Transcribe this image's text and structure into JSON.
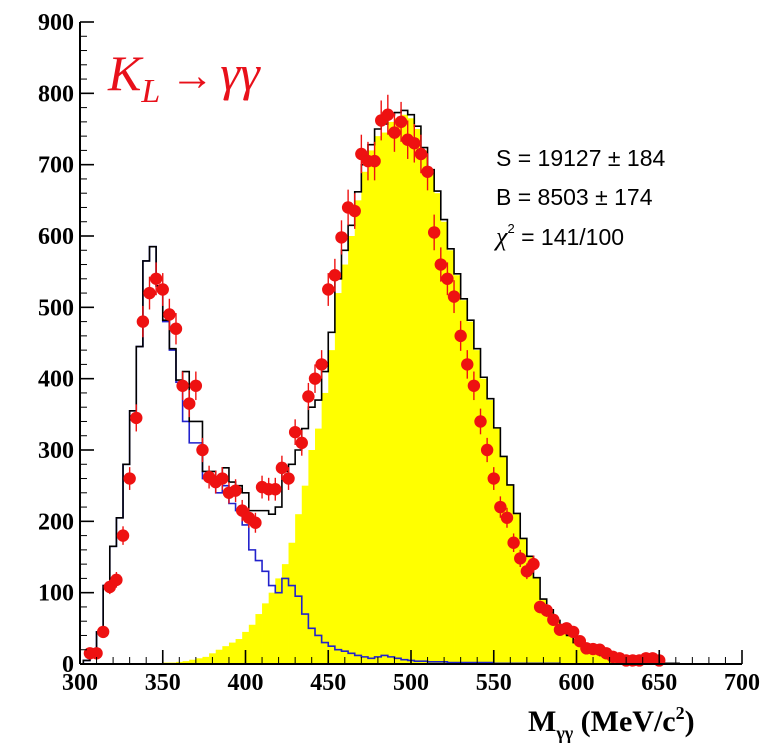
{
  "chart_data": {
    "type": "histogram",
    "title": "K_L → γγ",
    "title_parts": {
      "main": "K",
      "sub": "L",
      "arrow": "→",
      "decay": "γγ"
    },
    "xlabel": "M_γγ (MeV/c²)",
    "xlabel_parts": {
      "main": "M",
      "sub": "γγ",
      "units": " (MeV/c",
      "sup": "2",
      "close": ")"
    },
    "xlim": [
      300,
      700
    ],
    "ylim": [
      0,
      900
    ],
    "x_ticks": [
      "300",
      "350",
      "400",
      "450",
      "500",
      "550",
      "600",
      "650",
      "700"
    ],
    "y_ticks": [
      "0",
      "100",
      "200",
      "300",
      "400",
      "500",
      "600",
      "700",
      "800",
      "900"
    ],
    "grid": false,
    "bin_width": 4,
    "stats": {
      "line1": "S = 19127 ± 184",
      "line2": "B = 8503 ± 174",
      "line3_symbol": "χ",
      "line3_sup": "2",
      "line3_rest": " = 141/100"
    },
    "colors": {
      "signal_fill": "#ffff00",
      "background_line": "#2222cc",
      "total_line": "#000000",
      "data_points": "#ee1111",
      "title": "#e8101a"
    },
    "series": [
      {
        "role": "signal",
        "style": "filled-histogram",
        "x": [
          304,
          308,
          312,
          316,
          320,
          324,
          328,
          332,
          336,
          340,
          344,
          348,
          352,
          356,
          360,
          364,
          368,
          372,
          376,
          380,
          384,
          388,
          392,
          396,
          400,
          404,
          408,
          412,
          416,
          420,
          424,
          428,
          432,
          436,
          440,
          444,
          448,
          452,
          456,
          460,
          464,
          468,
          472,
          476,
          480,
          484,
          488,
          492,
          496,
          500,
          504,
          508,
          512,
          516,
          520,
          524,
          528,
          532,
          536,
          540,
          544,
          548,
          552,
          556,
          560,
          564,
          568,
          572,
          576,
          580,
          584,
          588,
          592,
          596,
          600,
          604,
          608,
          612,
          616,
          620,
          624,
          628,
          632,
          636,
          640,
          644,
          648,
          652,
          656,
          660,
          664,
          668,
          672,
          676,
          680,
          684,
          688,
          692,
          696
        ],
        "values": [
          0,
          0,
          0,
          0,
          0,
          0,
          0,
          0,
          0,
          0,
          0,
          0,
          2,
          2,
          3,
          4,
          6,
          8,
          10,
          15,
          20,
          25,
          30,
          35,
          45,
          55,
          70,
          85,
          100,
          120,
          140,
          170,
          210,
          250,
          300,
          330,
          380,
          440,
          520,
          560,
          600,
          650,
          690,
          720,
          740,
          745,
          760,
          765,
          770,
          765,
          750,
          720,
          690,
          660,
          620,
          580,
          545,
          510,
          480,
          440,
          400,
          370,
          330,
          290,
          250,
          210,
          175,
          150,
          120,
          90,
          75,
          60,
          50,
          40,
          30,
          25,
          20,
          15,
          12,
          10,
          8,
          6,
          5,
          4,
          3,
          2,
          2,
          1,
          1,
          1,
          0,
          0,
          0,
          0,
          0,
          0,
          0,
          0,
          0
        ]
      },
      {
        "role": "background",
        "style": "step-line",
        "x": [
          304,
          308,
          312,
          316,
          320,
          324,
          328,
          332,
          336,
          340,
          344,
          348,
          352,
          356,
          360,
          364,
          368,
          372,
          376,
          380,
          384,
          388,
          392,
          396,
          400,
          404,
          408,
          412,
          416,
          420,
          424,
          428,
          432,
          436,
          440,
          444,
          448,
          452,
          456,
          460,
          464,
          468,
          472,
          476,
          480,
          484,
          488,
          492,
          496,
          500,
          504,
          508,
          512,
          516,
          520,
          524,
          528,
          532,
          536,
          540,
          544,
          548,
          552,
          556,
          560,
          564,
          568,
          572,
          576,
          580,
          584,
          588,
          592,
          596,
          600,
          604,
          608,
          612,
          616,
          620,
          624,
          628,
          632,
          636,
          640,
          644,
          648,
          652,
          656,
          660,
          664,
          668,
          672,
          676,
          680,
          684,
          688,
          692,
          696
        ],
        "values": [
          5,
          15,
          45,
          110,
          165,
          205,
          280,
          355,
          445,
          565,
          585,
          530,
          480,
          440,
          395,
          340,
          310,
          310,
          260,
          255,
          240,
          250,
          225,
          215,
          195,
          160,
          145,
          130,
          110,
          100,
          120,
          110,
          95,
          70,
          50,
          40,
          30,
          25,
          20,
          18,
          15,
          12,
          10,
          8,
          10,
          12,
          10,
          8,
          6,
          5,
          4,
          4,
          3,
          3,
          3,
          2,
          2,
          2,
          2,
          2,
          2,
          2,
          1,
          1,
          1,
          1,
          1,
          1,
          1,
          1,
          1,
          1,
          0,
          0,
          0,
          0,
          0,
          0,
          0,
          0,
          0,
          0,
          0,
          0,
          0,
          0,
          0,
          0,
          0,
          0,
          0,
          0,
          0,
          0,
          0,
          0,
          0,
          0,
          0
        ]
      },
      {
        "role": "total",
        "style": "step-line",
        "x": [
          304,
          308,
          312,
          316,
          320,
          324,
          328,
          332,
          336,
          340,
          344,
          348,
          352,
          356,
          360,
          364,
          368,
          372,
          376,
          380,
          384,
          388,
          392,
          396,
          400,
          404,
          408,
          412,
          416,
          420,
          424,
          428,
          432,
          436,
          440,
          444,
          448,
          452,
          456,
          460,
          464,
          468,
          472,
          476,
          480,
          484,
          488,
          492,
          496,
          500,
          504,
          508,
          512,
          516,
          520,
          524,
          528,
          532,
          536,
          540,
          544,
          548,
          552,
          556,
          560,
          564,
          568,
          572,
          576,
          580,
          584,
          588,
          592,
          596,
          600,
          604,
          608,
          612,
          616,
          620,
          624,
          628,
          632,
          636,
          640,
          644,
          648,
          652,
          656,
          660,
          664,
          668,
          672,
          676,
          680,
          684,
          688,
          692,
          696
        ],
        "values": [
          5,
          15,
          45,
          110,
          165,
          205,
          280,
          355,
          445,
          565,
          585,
          530,
          482,
          442,
          398,
          410,
          340,
          340,
          270,
          270,
          260,
          275,
          255,
          250,
          240,
          215,
          215,
          215,
          210,
          220,
          270,
          280,
          300,
          330,
          360,
          370,
          410,
          465,
          540,
          580,
          615,
          662,
          700,
          728,
          750,
          757,
          770,
          773,
          776,
          770,
          754,
          724,
          693,
          663,
          623,
          582,
          547,
          512,
          482,
          442,
          402,
          372,
          331,
          291,
          251,
          211,
          176,
          151,
          121,
          91,
          76,
          61,
          50,
          40,
          30,
          25,
          20,
          15,
          12,
          10,
          8,
          6,
          5,
          4,
          3,
          2,
          2,
          1,
          1,
          1,
          0,
          0,
          0,
          0,
          0,
          0,
          0,
          0,
          0
        ]
      },
      {
        "role": "data",
        "style": "points-with-errors",
        "x": [
          306,
          310,
          314,
          318,
          322,
          326,
          330,
          334,
          338,
          342,
          346,
          350,
          354,
          358,
          362,
          366,
          370,
          374,
          378,
          382,
          386,
          390,
          394,
          398,
          402,
          406,
          410,
          414,
          418,
          422,
          426,
          430,
          434,
          438,
          442,
          446,
          450,
          454,
          458,
          462,
          466,
          470,
          474,
          478,
          482,
          486,
          490,
          494,
          498,
          502,
          506,
          510,
          514,
          518,
          522,
          526,
          530,
          534,
          538,
          542,
          546,
          550,
          554,
          558,
          562,
          566,
          570,
          574,
          578,
          582,
          586,
          590,
          594,
          598,
          602,
          606,
          610,
          614,
          618,
          622,
          626,
          630,
          634,
          638,
          642,
          646,
          650
        ],
        "values": [
          15,
          15,
          45,
          108,
          118,
          180,
          260,
          345,
          480,
          520,
          540,
          525,
          490,
          470,
          390,
          365,
          390,
          300,
          262,
          255,
          260,
          240,
          243,
          215,
          205,
          198,
          248,
          245,
          245,
          275,
          260,
          325,
          310,
          375,
          400,
          420,
          525,
          545,
          598,
          640,
          635,
          715,
          705,
          705,
          762,
          770,
          745,
          760,
          735,
          730,
          715,
          690,
          605,
          560,
          540,
          515,
          460,
          420,
          390,
          340,
          300,
          260,
          220,
          205,
          170,
          148,
          130,
          140,
          80,
          75,
          62,
          48,
          50,
          45,
          32,
          22,
          21,
          20,
          15,
          10,
          8,
          5,
          5,
          5,
          8,
          8,
          5
        ],
        "errors": [
          4,
          4,
          7,
          10,
          11,
          13,
          16,
          19,
          22,
          23,
          23,
          23,
          22,
          22,
          20,
          19,
          20,
          17,
          16,
          16,
          16,
          15,
          16,
          15,
          14,
          14,
          16,
          16,
          16,
          17,
          16,
          18,
          18,
          19,
          20,
          20,
          23,
          23,
          24,
          25,
          25,
          27,
          27,
          27,
          28,
          28,
          27,
          28,
          27,
          27,
          27,
          26,
          25,
          24,
          23,
          23,
          21,
          20,
          20,
          18,
          17,
          16,
          15,
          14,
          13,
          12,
          11,
          12,
          9,
          9,
          8,
          7,
          7,
          7,
          6,
          5,
          5,
          4,
          4,
          3,
          3,
          2,
          2,
          2,
          3,
          3,
          2
        ]
      }
    ]
  }
}
